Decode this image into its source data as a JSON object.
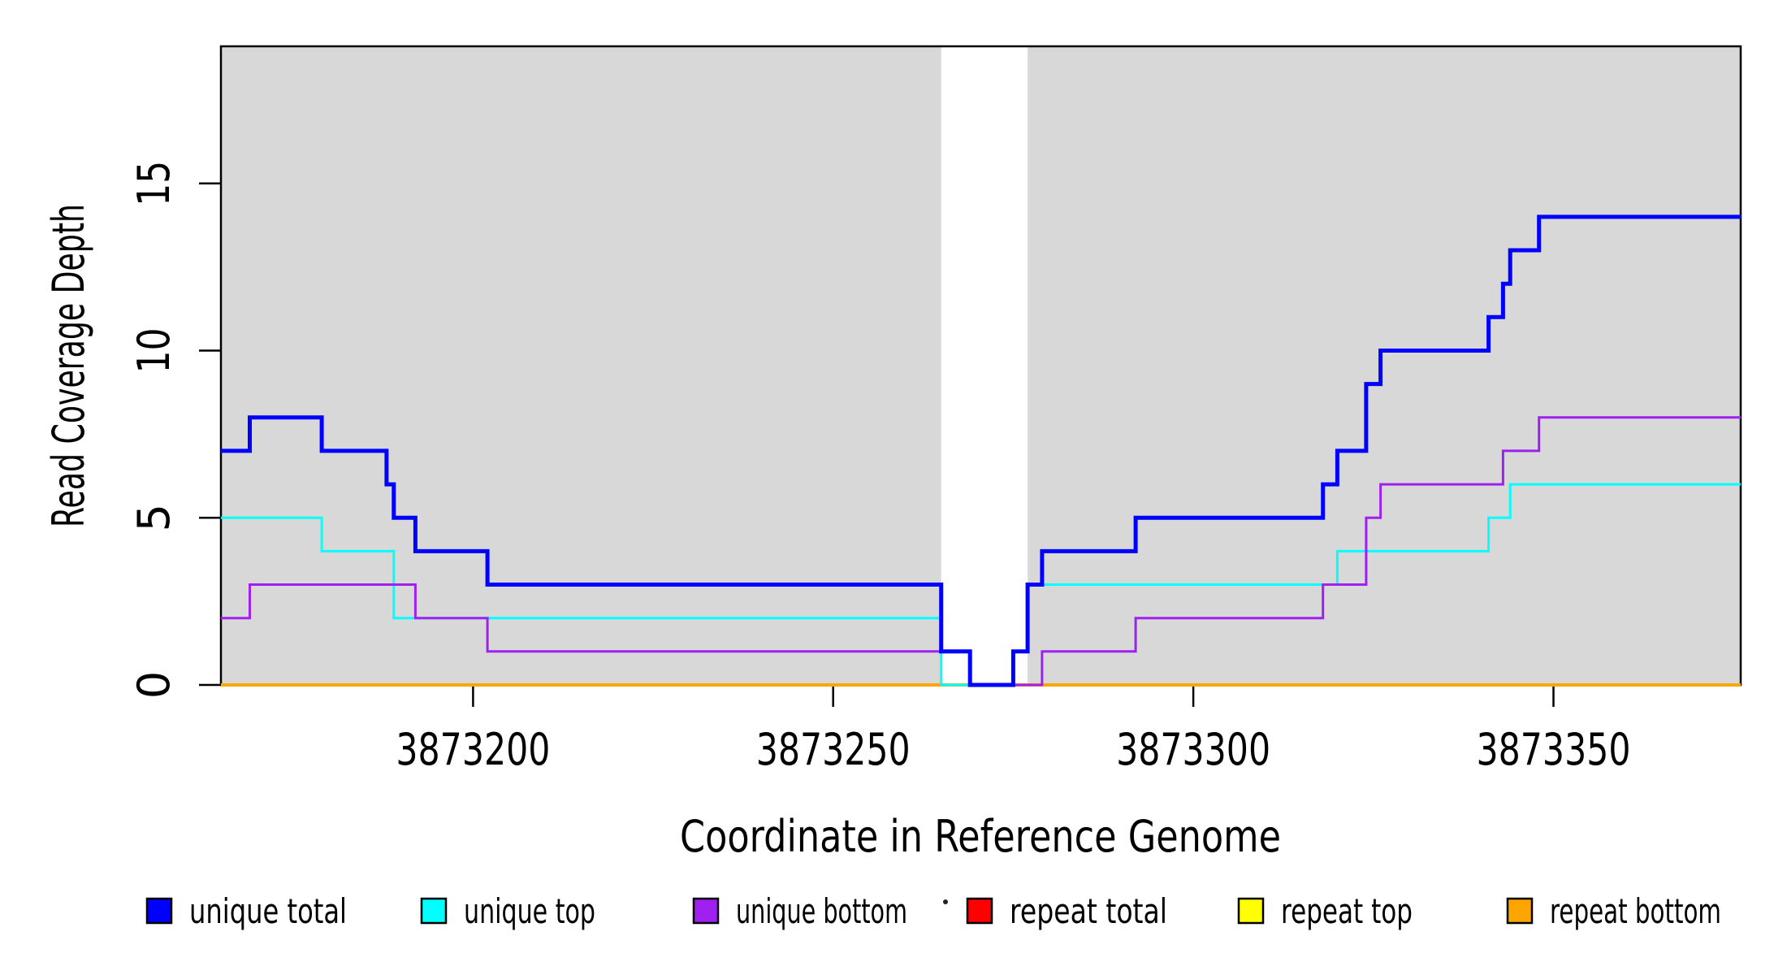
{
  "chart_data": {
    "type": "line",
    "subtype": "step",
    "title": "",
    "xlabel": "Coordinate in Reference Genome",
    "ylabel": "Read Coverage Depth",
    "xlim": [
      3873165,
      3873376
    ],
    "ylim": [
      0,
      19.1
    ],
    "x_ticks": [
      3873200,
      3873250,
      3873300,
      3873350
    ],
    "y_ticks": [
      0,
      5,
      10,
      15
    ],
    "grid": false,
    "legend_position": "bottom",
    "background_bands": {
      "color": "#d8d8d8",
      "border_color": "#000000",
      "regions": [
        {
          "x0": 3873165,
          "x1": 3873265
        },
        {
          "x0": 3873277,
          "x1": 3873376
        }
      ]
    },
    "series": [
      {
        "name": "repeat total",
        "color": "#ff0000",
        "line_width": 3,
        "points": [
          [
            3873165,
            0
          ],
          [
            3873376,
            0
          ]
        ]
      },
      {
        "name": "repeat top",
        "color": "#ffff00",
        "line_width": 3,
        "points": [
          [
            3873165,
            0
          ],
          [
            3873376,
            0
          ]
        ]
      },
      {
        "name": "repeat bottom",
        "color": "#ffa500",
        "line_width": 4,
        "points": [
          [
            3873165,
            0
          ],
          [
            3873376,
            0
          ]
        ]
      },
      {
        "name": "unique top",
        "color": "#00ffff",
        "line_width": 3,
        "points": [
          [
            3873165,
            5
          ],
          [
            3873179,
            4
          ],
          [
            3873189,
            2
          ],
          [
            3873265,
            0
          ],
          [
            3873275,
            1
          ],
          [
            3873277,
            3
          ],
          [
            3873320,
            4
          ],
          [
            3873341,
            5
          ],
          [
            3873344,
            6
          ],
          [
            3873376,
            6
          ]
        ]
      },
      {
        "name": "unique bottom",
        "color": "#a020f0",
        "line_width": 3,
        "points": [
          [
            3873165,
            2
          ],
          [
            3873169,
            3
          ],
          [
            3873192,
            2
          ],
          [
            3873202,
            1
          ],
          [
            3873269,
            0
          ],
          [
            3873279,
            1
          ],
          [
            3873292,
            2
          ],
          [
            3873318,
            3
          ],
          [
            3873324,
            5
          ],
          [
            3873326,
            6
          ],
          [
            3873343,
            7
          ],
          [
            3873348,
            8
          ],
          [
            3873376,
            8
          ]
        ]
      },
      {
        "name": "unique total",
        "color": "#0000ff",
        "line_width": 5,
        "points": [
          [
            3873165,
            7
          ],
          [
            3873169,
            8
          ],
          [
            3873179,
            7
          ],
          [
            3873188,
            6
          ],
          [
            3873189,
            5
          ],
          [
            3873192,
            4
          ],
          [
            3873202,
            3
          ],
          [
            3873265,
            1
          ],
          [
            3873269,
            0
          ],
          [
            3873275,
            1
          ],
          [
            3873277,
            3
          ],
          [
            3873279,
            4
          ],
          [
            3873292,
            5
          ],
          [
            3873318,
            6
          ],
          [
            3873320,
            7
          ],
          [
            3873324,
            9
          ],
          [
            3873326,
            10
          ],
          [
            3873341,
            11
          ],
          [
            3873343,
            12
          ],
          [
            3873344,
            13
          ],
          [
            3873348,
            14
          ],
          [
            3873376,
            14
          ]
        ]
      }
    ]
  },
  "legend": {
    "items": [
      {
        "label": "unique total",
        "color": "#0000ff"
      },
      {
        "label": "unique top",
        "color": "#00ffff"
      },
      {
        "label": "unique bottom",
        "color": "#a020f0"
      },
      {
        "label": "repeat total",
        "color": "#ff0000"
      },
      {
        "label": "repeat top",
        "color": "#ffff00"
      },
      {
        "label": "repeat bottom",
        "color": "#ffa500"
      }
    ]
  }
}
